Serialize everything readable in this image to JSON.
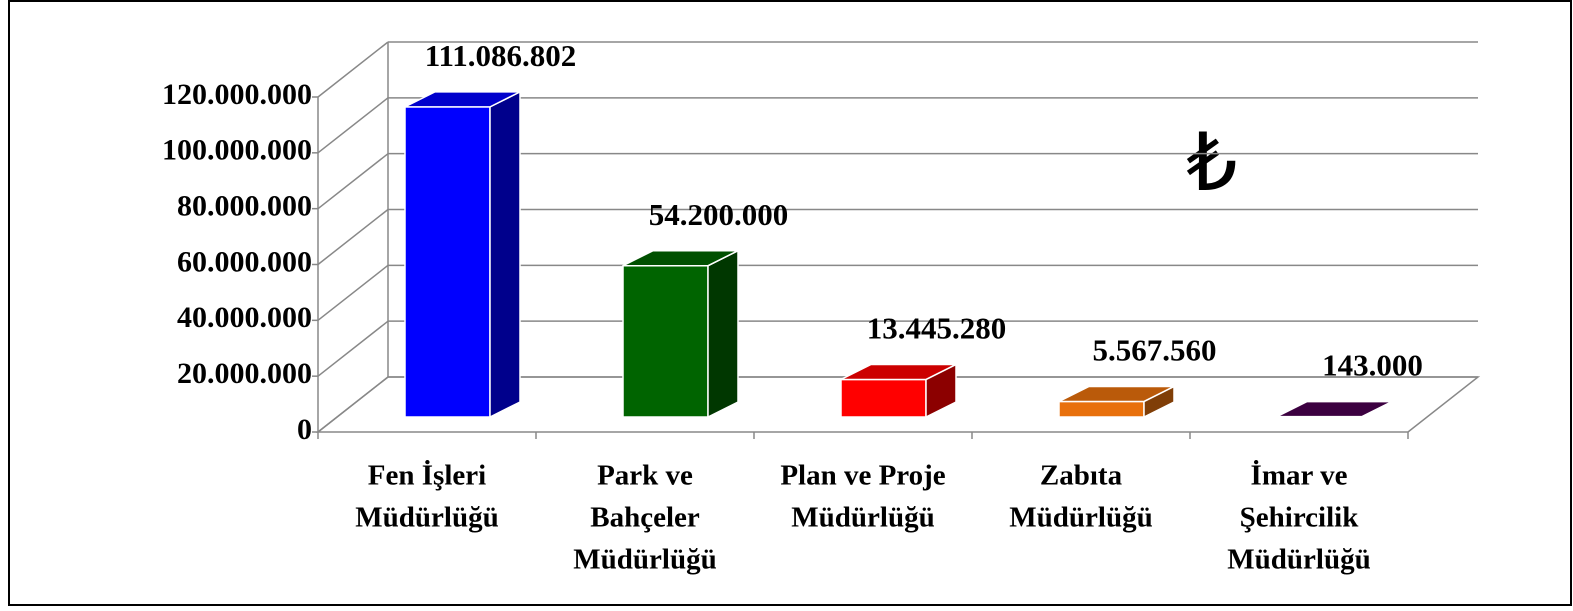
{
  "chart_data": {
    "type": "bar3d",
    "annotation": "₺",
    "categories": [
      [
        "Fen İşleri",
        "Müdürlüğü"
      ],
      [
        "Park ve",
        "Bahçeler",
        "Müdürlüğü"
      ],
      [
        "Plan ve Proje",
        "Müdürlüğü"
      ],
      [
        "Zabıta",
        "Müdürlüğü"
      ],
      [
        "İmar ve",
        "Şehircilik",
        "Müdürlüğü"
      ]
    ],
    "values": [
      111086802,
      54200000,
      13445280,
      5567560,
      143000
    ],
    "value_labels": [
      "111.086.802",
      "54.200.000",
      "13.445.280",
      "5.567.560",
      "143.000"
    ],
    "colors": [
      "#0000ff",
      "#006400",
      "#ff0000",
      "#e8700c",
      "#4b0050"
    ],
    "ylim": [
      0,
      120000000
    ],
    "yticks": [
      0,
      {
        "value": 20000000,
        "label": "20.000.000"
      },
      {
        "value": 40000000,
        "label": "40.000.000"
      },
      {
        "value": 60000000,
        "label": "60.000.000"
      },
      {
        "value": 80000000,
        "label": "80.000.000"
      },
      {
        "value": 100000000,
        "label": "100.000.000"
      },
      {
        "value": 120000000,
        "label": "120.000.000"
      }
    ],
    "grid": true
  }
}
